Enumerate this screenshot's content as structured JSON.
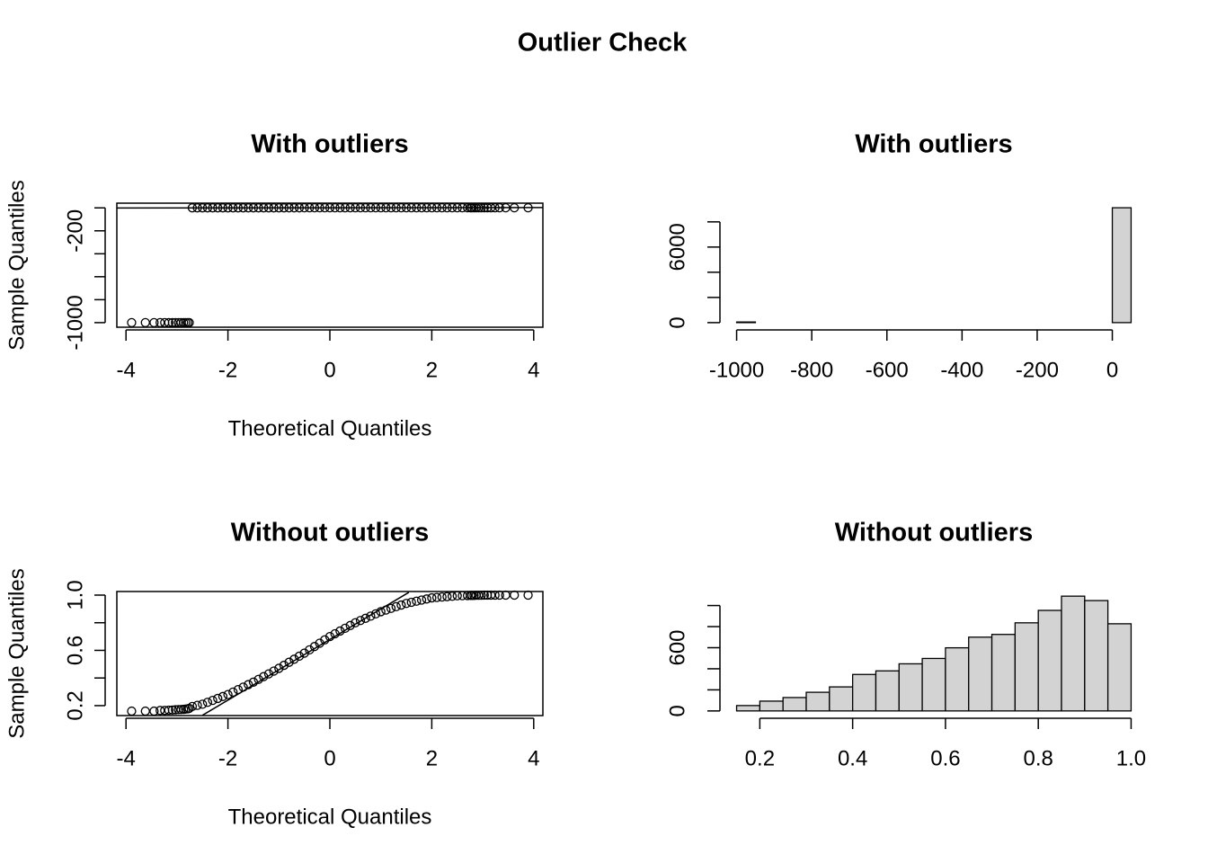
{
  "title": "Outlier Check",
  "chart_data": [
    {
      "type": "scatter",
      "title": "With outliers",
      "x_label": "Theoretical Quantiles",
      "y_label": "Sample Quantiles",
      "x": [
        -3.89,
        -3.62,
        -3.45,
        -3.33,
        -3.24,
        -3.16,
        -3.09,
        -3.03,
        -2.97,
        -2.92,
        -2.87,
        -2.83,
        -2.79,
        -2.76,
        -2.7,
        -2.6,
        -2.5,
        -2.4,
        -2.3,
        -2.2,
        -2.1,
        -2,
        -1.9,
        -1.8,
        -1.7,
        -1.6,
        -1.5,
        -1.4,
        -1.3,
        -1.2,
        -1.1,
        -1,
        -0.9,
        -0.8,
        -0.7,
        -0.6,
        -0.5,
        -0.4,
        -0.3,
        -0.2,
        -0.1,
        0,
        0.1,
        0.2,
        0.3,
        0.4,
        0.5,
        0.6,
        0.7,
        0.8,
        0.9,
        1,
        1.1,
        1.2,
        1.3,
        1.4,
        1.5,
        1.6,
        1.7,
        1.8,
        1.9,
        2,
        2.1,
        2.2,
        2.3,
        2.4,
        2.5,
        2.6,
        2.7,
        2.76,
        2.79,
        2.83,
        2.87,
        2.92,
        2.97,
        3.03,
        3.09,
        3.16,
        3.24,
        3.33,
        3.45,
        3.62,
        3.89
      ],
      "y": [
        -1000,
        -1000,
        -1000,
        -1000,
        -1000,
        -1000,
        -1000,
        -1000,
        -1000,
        -1000,
        -1000,
        -1000,
        -1000,
        -1000,
        0.194,
        0.202,
        0.21,
        0.224,
        0.238,
        0.252,
        0.266,
        0.28,
        0.298,
        0.316,
        0.334,
        0.352,
        0.37,
        0.39,
        0.41,
        0.43,
        0.45,
        0.47,
        0.492,
        0.514,
        0.536,
        0.558,
        0.58,
        0.604,
        0.628,
        0.652,
        0.676,
        0.7,
        0.72,
        0.74,
        0.76,
        0.78,
        0.8,
        0.816,
        0.832,
        0.848,
        0.864,
        0.88,
        0.892,
        0.904,
        0.916,
        0.928,
        0.94,
        0.948,
        0.956,
        0.964,
        0.972,
        0.98,
        0.983,
        0.986,
        0.989,
        0.992,
        0.995,
        0.996,
        0.997,
        0.998,
        0.998,
        0.998,
        0.999,
        0.999,
        0.999,
        1,
        1,
        1,
        1,
        1,
        1,
        1,
        1
      ],
      "reference_line": {
        "x": [
          -4.18,
          4.18
        ],
        "y": [
          -1.0,
          2.4
        ]
      },
      "xlim": [
        -4.18,
        4.18
      ],
      "ylim": [
        -1040,
        41
      ],
      "xticks": [
        -4,
        -2,
        0,
        2,
        4
      ],
      "yticks": [
        -1000,
        -200
      ],
      "minor_yticks": [
        -800,
        -600,
        -400,
        0
      ],
      "box": true
    },
    {
      "type": "histogram",
      "title": "With outliers",
      "bins": [
        -1000,
        -950,
        -900,
        -850,
        -800,
        -750,
        -700,
        -650,
        -600,
        -550,
        -500,
        -450,
        -400,
        -350,
        -300,
        -250,
        -200,
        -150,
        -100,
        -50,
        0,
        50
      ],
      "counts": [
        50,
        0,
        0,
        0,
        0,
        0,
        0,
        0,
        0,
        0,
        0,
        0,
        0,
        0,
        0,
        0,
        0,
        0,
        0,
        0,
        9120
      ],
      "color": "#d3d3d3",
      "xlim": [
        -1042,
        92
      ],
      "ylim": [
        -365,
        9485
      ],
      "xticks": [
        -1000,
        -800,
        -600,
        -400,
        -200,
        0
      ],
      "yticks": [
        0,
        6000
      ],
      "minor_yticks": [
        2000,
        4000,
        8000
      ]
    },
    {
      "type": "scatter",
      "title": "Without outliers",
      "x_label": "Theoretical Quantiles",
      "y_label": "Sample Quantiles",
      "x": [
        -3.89,
        -3.62,
        -3.45,
        -3.33,
        -3.24,
        -3.16,
        -3.09,
        -3.03,
        -2.97,
        -2.92,
        -2.87,
        -2.83,
        -2.79,
        -2.76,
        -2.7,
        -2.6,
        -2.5,
        -2.4,
        -2.3,
        -2.2,
        -2.1,
        -2,
        -1.9,
        -1.8,
        -1.7,
        -1.6,
        -1.5,
        -1.4,
        -1.3,
        -1.2,
        -1.1,
        -1,
        -0.9,
        -0.8,
        -0.7,
        -0.6,
        -0.5,
        -0.4,
        -0.3,
        -0.2,
        -0.1,
        0,
        0.1,
        0.2,
        0.3,
        0.4,
        0.5,
        0.6,
        0.7,
        0.8,
        0.9,
        1,
        1.1,
        1.2,
        1.3,
        1.4,
        1.5,
        1.6,
        1.7,
        1.8,
        1.9,
        2,
        2.1,
        2.2,
        2.3,
        2.4,
        2.5,
        2.6,
        2.7,
        2.76,
        2.79,
        2.83,
        2.87,
        2.92,
        2.97,
        3.03,
        3.09,
        3.16,
        3.24,
        3.33,
        3.45,
        3.62,
        3.89
      ],
      "y": [
        0.16,
        0.16,
        0.16,
        0.165,
        0.165,
        0.167,
        0.168,
        0.17,
        0.171,
        0.172,
        0.173,
        0.175,
        0.177,
        0.18,
        0.194,
        0.202,
        0.21,
        0.224,
        0.238,
        0.252,
        0.266,
        0.28,
        0.298,
        0.316,
        0.334,
        0.352,
        0.37,
        0.39,
        0.41,
        0.43,
        0.45,
        0.47,
        0.492,
        0.514,
        0.536,
        0.558,
        0.58,
        0.604,
        0.628,
        0.652,
        0.676,
        0.7,
        0.72,
        0.74,
        0.76,
        0.78,
        0.8,
        0.816,
        0.832,
        0.848,
        0.864,
        0.88,
        0.892,
        0.904,
        0.916,
        0.928,
        0.94,
        0.948,
        0.956,
        0.964,
        0.972,
        0.98,
        0.983,
        0.986,
        0.989,
        0.992,
        0.995,
        0.996,
        0.997,
        0.998,
        0.998,
        0.998,
        0.999,
        0.999,
        0.999,
        1,
        1,
        1,
        1,
        1,
        1,
        1,
        1
      ],
      "reference_line": {
        "x": [
          -2.5,
          1.55
        ],
        "y": [
          0.13,
          1.02
        ]
      },
      "xlim": [
        -4.18,
        4.18
      ],
      "ylim": [
        0.128,
        1.026
      ],
      "xticks": [
        -4,
        -2,
        0,
        2,
        4
      ],
      "yticks": [
        0.2,
        0.6,
        {
          "value": 1,
          "label": "1.0"
        }
      ],
      "minor_yticks": [
        0.4,
        0.8
      ],
      "box": true
    },
    {
      "type": "histogram",
      "title": "Without outliers",
      "bins": [
        0.15,
        0.2,
        0.25,
        0.3,
        0.35,
        0.4,
        0.45,
        0.5,
        0.55,
        0.6,
        0.65,
        0.7,
        0.75,
        0.8,
        0.85,
        0.9,
        0.95,
        1.0
      ],
      "counts": [
        51,
        93,
        127,
        177,
        228,
        346,
        380,
        447,
        498,
        599,
        700,
        726,
        836,
        954,
        1089,
        1047,
        827
      ],
      "color": "#d3d3d3",
      "xlim": [
        0.116,
        1.034
      ],
      "ylim": [
        -44,
        1133
      ],
      "xticks": [
        0.2,
        0.4,
        0.6,
        0.8,
        {
          "value": 1,
          "label": "1.0"
        }
      ],
      "yticks": [
        0,
        600
      ],
      "minor_yticks": [
        200,
        400,
        800,
        1000
      ]
    }
  ]
}
